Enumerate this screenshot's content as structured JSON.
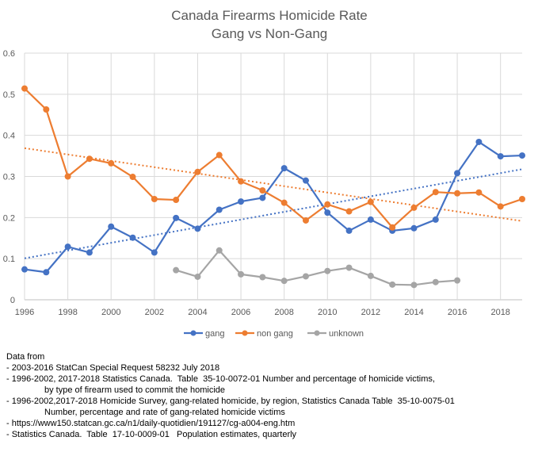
{
  "chart_data": {
    "type": "line",
    "title": "Canada Firearms Homicide Rate",
    "subtitle": "Gang vs Non-Gang",
    "xlabel": "",
    "ylabel": "",
    "xlim": [
      1996,
      2019
    ],
    "ylim": [
      0,
      0.6
    ],
    "x_ticks": [
      "1996",
      "1998",
      "2000",
      "2002",
      "2004",
      "2006",
      "2008",
      "2010",
      "2012",
      "2014",
      "2016",
      "2018"
    ],
    "y_ticks": [
      "0",
      "0.1",
      "0.2",
      "0.3",
      "0.4",
      "0.5",
      "0.6"
    ],
    "grid": true,
    "legend_position": "bottom",
    "trendlines": "linear, dotted, for gang and non gang",
    "series": [
      {
        "name": "gang",
        "color": "#4472C4",
        "start_year": 1996,
        "values": [
          0.074,
          0.067,
          0.129,
          0.115,
          0.178,
          0.151,
          0.115,
          0.199,
          0.173,
          0.219,
          0.239,
          0.248,
          0.32,
          0.29,
          0.212,
          0.168,
          0.195,
          0.168,
          0.174,
          0.195,
          0.308,
          0.384,
          0.349,
          0.351
        ]
      },
      {
        "name": "non gang",
        "color": "#ED7D31",
        "start_year": 1996,
        "values": [
          0.514,
          0.463,
          0.3,
          0.343,
          0.332,
          0.299,
          0.245,
          0.243,
          0.311,
          0.352,
          0.288,
          0.266,
          0.236,
          0.193,
          0.232,
          0.215,
          0.238,
          0.176,
          0.224,
          0.262,
          0.259,
          0.261,
          0.227,
          0.245
        ]
      },
      {
        "name": "unknown",
        "color": "#A5A5A5",
        "start_year": 2003,
        "values": [
          0.072,
          0.056,
          0.12,
          0.062,
          0.055,
          0.046,
          0.057,
          0.07,
          0.078,
          0.058,
          0.037,
          0.036,
          0.043,
          0.047
        ]
      }
    ]
  },
  "notes": {
    "heading": "Data from",
    "lines": [
      "- 2003-2016 StatCan Special Request 58232 July 2018",
      "- 1996-2002, 2017-2018 Statistics Canada.  Table  35-10-0072-01 Number and percentage of homicide victims,",
      "by type of firearm used to commit the homicide",
      "- 1996-2002,2017-2018 Homicide Survey, gang-related homicide, by region, Statistics Canada Table  35-10-0075-01",
      "Number, percentage and rate of gang-related homicide victims",
      "- https://www150.statcan.gc.ca/n1/daily-quotidien/191127/cg-a004-eng.htm",
      "- Statistics Canada.  Table  17-10-0009-01   Population estimates, quarterly"
    ]
  }
}
